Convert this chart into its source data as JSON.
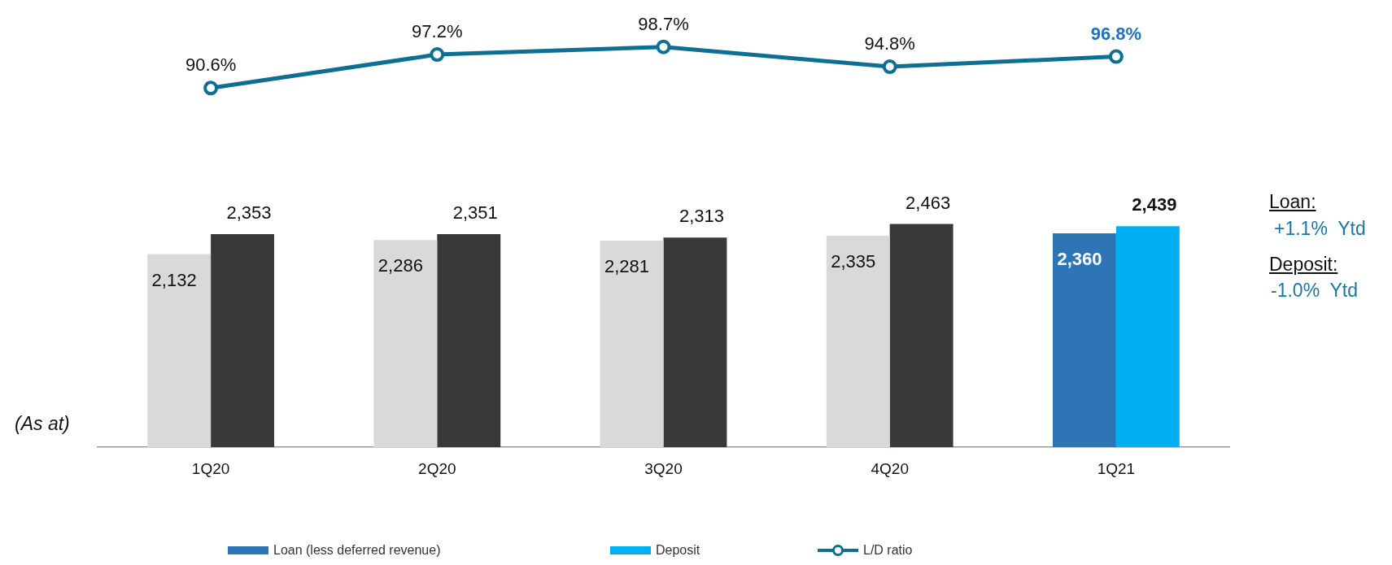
{
  "chart_data": [
    {
      "type": "line",
      "categories": [
        null,
        null,
        null,
        null,
        null
      ],
      "series": [
        {
          "name": "L/D ratio",
          "color": "#0e6f94",
          "values": [
            90.6,
            97.2,
            98.7,
            94.8,
            96.8
          ],
          "value_labels": [
            "90.6%",
            "97.2%",
            "98.7%",
            "94.8%",
            "96.8%"
          ]
        }
      ],
      "marker": "circle",
      "legend": "bottom",
      "grid": false,
      "tick_labels": false
    },
    {
      "type": "bar",
      "categories": [
        "1Q20",
        "2Q20",
        "3Q20",
        "4Q20",
        "1Q21"
      ],
      "series": [
        {
          "name": "Loan (less deferred revenue)",
          "color": "#2e75b6",
          "colors": [
            "#d9d9d9",
            "#d9d9d9",
            "#d9d9d9",
            "#d9d9d9",
            "#2e75b6"
          ],
          "values": [
            2132,
            2286,
            2281,
            2335,
            2360
          ],
          "value_labels": [
            "2,132",
            "2,286",
            "2,281",
            "2,335",
            "2,360"
          ]
        },
        {
          "name": "Deposit",
          "color": "#00b0f0",
          "colors": [
            "#3a3938",
            "#3a3938",
            "#3a3938",
            "#3a3938",
            "#00b0f0"
          ],
          "values": [
            2353,
            2351,
            2313,
            2463,
            2439
          ],
          "value_labels": [
            "2,353",
            "2,351",
            "2,313",
            "2,463",
            "2,439"
          ]
        }
      ],
      "legend": "bottom",
      "grid": false,
      "tick_labels": "x",
      "annotations": [
        "(As at)",
        "Loan:",
        "+1.1%  Ytd",
        "Deposit:",
        "-1.0%  Ytd"
      ]
    }
  ]
}
